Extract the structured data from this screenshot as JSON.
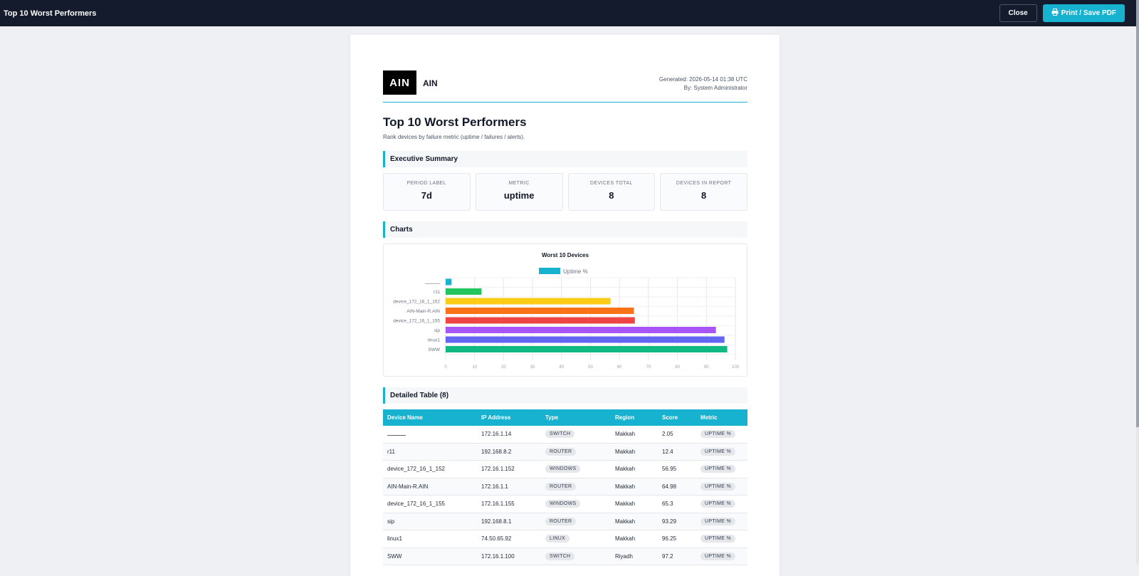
{
  "topbar": {
    "title": "Top 10 Worst Performers",
    "close_label": "Close",
    "print_label": "Print / Save PDF"
  },
  "report": {
    "logo_text": "AIN",
    "brand": "AIN",
    "generated": "Generated: 2026-05-14 01:38 UTC",
    "by": "By: System Administrator",
    "title": "Top 10 Worst Performers",
    "subtitle": "Rank devices by failure metric (uptime / failures / alerts).",
    "sections": {
      "summary": "Executive Summary",
      "charts": "Charts",
      "table": "Detailed Table (8)"
    }
  },
  "kpis": [
    {
      "label": "PERIOD LABEL",
      "value": "7d"
    },
    {
      "label": "METRIC",
      "value": "uptime"
    },
    {
      "label": "DEVICES TOTAL",
      "value": "8"
    },
    {
      "label": "DEVICES IN REPORT",
      "value": "8"
    }
  ],
  "chart_data": {
    "type": "bar",
    "orientation": "horizontal",
    "title": "Worst 10 Devices",
    "legend": "Uptime %",
    "legend_position": "top",
    "categories": [
      "ـــــــــــ",
      "r11",
      "device_172_16_1_152",
      "AIN-Main-R.AIN",
      "device_172_16_1_155",
      "sip",
      "linux1",
      "SWW"
    ],
    "values": [
      2.05,
      12.4,
      56.95,
      64.98,
      65.3,
      93.29,
      96.25,
      97.2
    ],
    "colors": [
      "#17b2cf",
      "#22c55e",
      "#facc15",
      "#f97316",
      "#ef4444",
      "#a855f7",
      "#6366f1",
      "#10b981"
    ],
    "xlim": [
      0,
      100
    ],
    "xticks": [
      "0",
      "10",
      "20",
      "30",
      "40",
      "50",
      "60",
      "70",
      "80",
      "90",
      "100"
    ],
    "grid": true
  },
  "table": {
    "headers": [
      "Device Name",
      "IP Address",
      "Type",
      "Region",
      "Score",
      "Metric"
    ],
    "rows": [
      [
        "ـــــــــــ",
        "172.16.1.14",
        "SWITCH",
        "Makkah",
        "2.05",
        "UPTIME %"
      ],
      [
        "r11",
        "192.168.8.2",
        "ROUTER",
        "Makkah",
        "12.4",
        "UPTIME %"
      ],
      [
        "device_172_16_1_152",
        "172.16.1.152",
        "WINDOWS",
        "Makkah",
        "56.95",
        "UPTIME %"
      ],
      [
        "AIN-Main-R.AIN",
        "172.16.1.1",
        "ROUTER",
        "Makkah",
        "64.98",
        "UPTIME %"
      ],
      [
        "device_172_16_1_155",
        "172.16.1.155",
        "WINDOWS",
        "Makkah",
        "65.3",
        "UPTIME %"
      ],
      [
        "sip",
        "192.168.8.1",
        "ROUTER",
        "Makkah",
        "93.29",
        "UPTIME %"
      ],
      [
        "linux1",
        "74.50.65.92",
        "LINUX",
        "Makkah",
        "96.25",
        "UPTIME %"
      ],
      [
        "SWW",
        "172.16.1.100",
        "SWITCH",
        "Riyadh",
        "97.2",
        "UPTIME %"
      ]
    ]
  }
}
